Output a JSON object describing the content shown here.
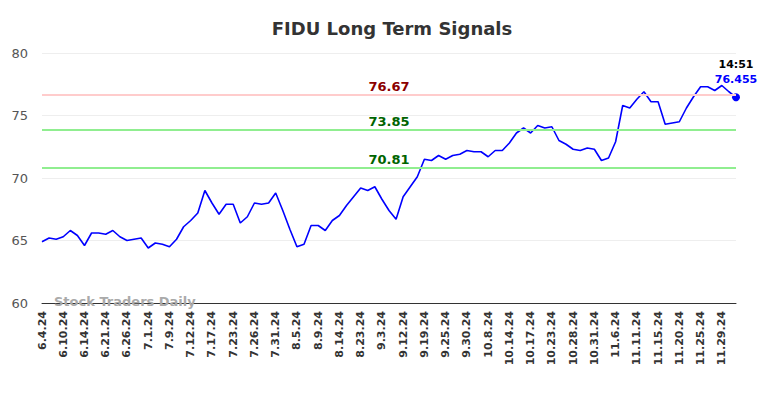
{
  "chart_data": {
    "type": "line",
    "title": "FIDU Long Term Signals",
    "categories": [
      "6.4.24",
      null,
      null,
      "6.10.24",
      null,
      null,
      "6.14.24",
      null,
      null,
      "6.21.24",
      null,
      null,
      "6.26.24",
      null,
      null,
      "7.1.24",
      null,
      null,
      "7.9.24",
      null,
      null,
      "7.12.24",
      null,
      null,
      "7.17.24",
      null,
      null,
      "7.23.24",
      null,
      null,
      "7.26.24",
      null,
      null,
      "7.31.24",
      null,
      null,
      "8.5.24",
      null,
      null,
      "8.9.24",
      null,
      null,
      "8.14.24",
      null,
      null,
      "8.23.24",
      null,
      null,
      "9.3.24",
      null,
      null,
      "9.12.24",
      null,
      null,
      "9.19.24",
      null,
      null,
      "9.25.24",
      null,
      null,
      "9.30.24",
      null,
      null,
      "10.8.24",
      null,
      null,
      "10.14.24",
      null,
      null,
      "10.17.24",
      null,
      null,
      "10.23.24",
      null,
      null,
      "10.28.24",
      null,
      null,
      "10.31.24",
      null,
      null,
      "11.6.24",
      null,
      null,
      "11.11.24",
      null,
      null,
      "11.15.24",
      null,
      null,
      "11.20.24",
      null,
      null,
      "11.25.24",
      null,
      null,
      "11.29.24",
      null,
      null
    ],
    "values": [
      64.9,
      65.2,
      65.1,
      65.3,
      65.8,
      65.4,
      64.6,
      65.6,
      65.6,
      65.5,
      65.8,
      65.3,
      65.0,
      65.1,
      65.2,
      64.4,
      64.8,
      64.7,
      64.5,
      65.1,
      66.1,
      66.6,
      67.2,
      69.0,
      68.0,
      67.1,
      67.9,
      67.9,
      66.4,
      66.9,
      68.0,
      67.9,
      68.0,
      68.8,
      67.4,
      65.9,
      64.5,
      64.7,
      66.2,
      66.2,
      65.8,
      66.6,
      67.0,
      67.8,
      68.5,
      69.2,
      69.0,
      69.3,
      68.3,
      67.4,
      66.7,
      68.5,
      69.3,
      70.1,
      71.5,
      71.4,
      71.8,
      71.5,
      71.8,
      71.9,
      72.2,
      72.1,
      72.1,
      71.7,
      72.2,
      72.2,
      72.8,
      73.6,
      74.0,
      73.6,
      74.2,
      74.0,
      74.1,
      73.0,
      72.7,
      72.3,
      72.2,
      72.4,
      72.3,
      71.4,
      71.6,
      72.9,
      75.8,
      75.6,
      76.3,
      76.9,
      76.1,
      76.1,
      74.3,
      74.4,
      74.5,
      75.6,
      76.5,
      77.3,
      77.3,
      77.0,
      77.4,
      76.9,
      76.455
    ],
    "color": "#0000ff",
    "ylim": [
      60,
      80
    ],
    "yticks": [
      60,
      65,
      70,
      75,
      80
    ],
    "grid": true,
    "reference_lines": [
      {
        "value": 76.67,
        "color": "#ffcccc",
        "label_color": "#8b0000"
      },
      {
        "value": 73.85,
        "color": "#90ee90",
        "label_color": "#006400"
      },
      {
        "value": 70.81,
        "color": "#90ee90",
        "label_color": "#006400"
      }
    ],
    "last_point_label": "14:51",
    "watermark": "Stock Traders Daily"
  }
}
